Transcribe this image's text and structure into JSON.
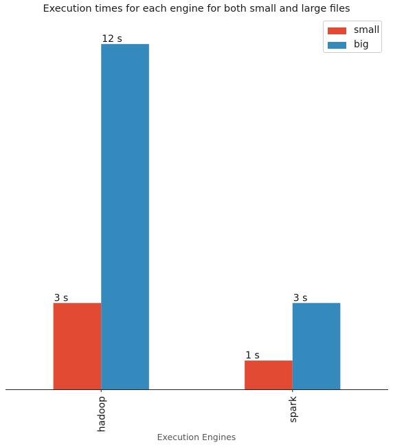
{
  "chart_data": {
    "type": "bar",
    "title": "Execution times for each engine for both small and large files",
    "xlabel": "Execution Engines",
    "ylabel": "",
    "categories": [
      "hadoop",
      "spark"
    ],
    "series": [
      {
        "name": "small",
        "values": [
          3,
          1
        ],
        "labels": [
          "3 s",
          "1 s"
        ],
        "color": "#e24a33"
      },
      {
        "name": "big",
        "values": [
          12,
          3
        ],
        "labels": [
          "12 s",
          "3 s"
        ],
        "color": "#348abd"
      }
    ],
    "ylim": [
      0,
      12.6
    ],
    "grid": false,
    "legend": "top-right"
  }
}
